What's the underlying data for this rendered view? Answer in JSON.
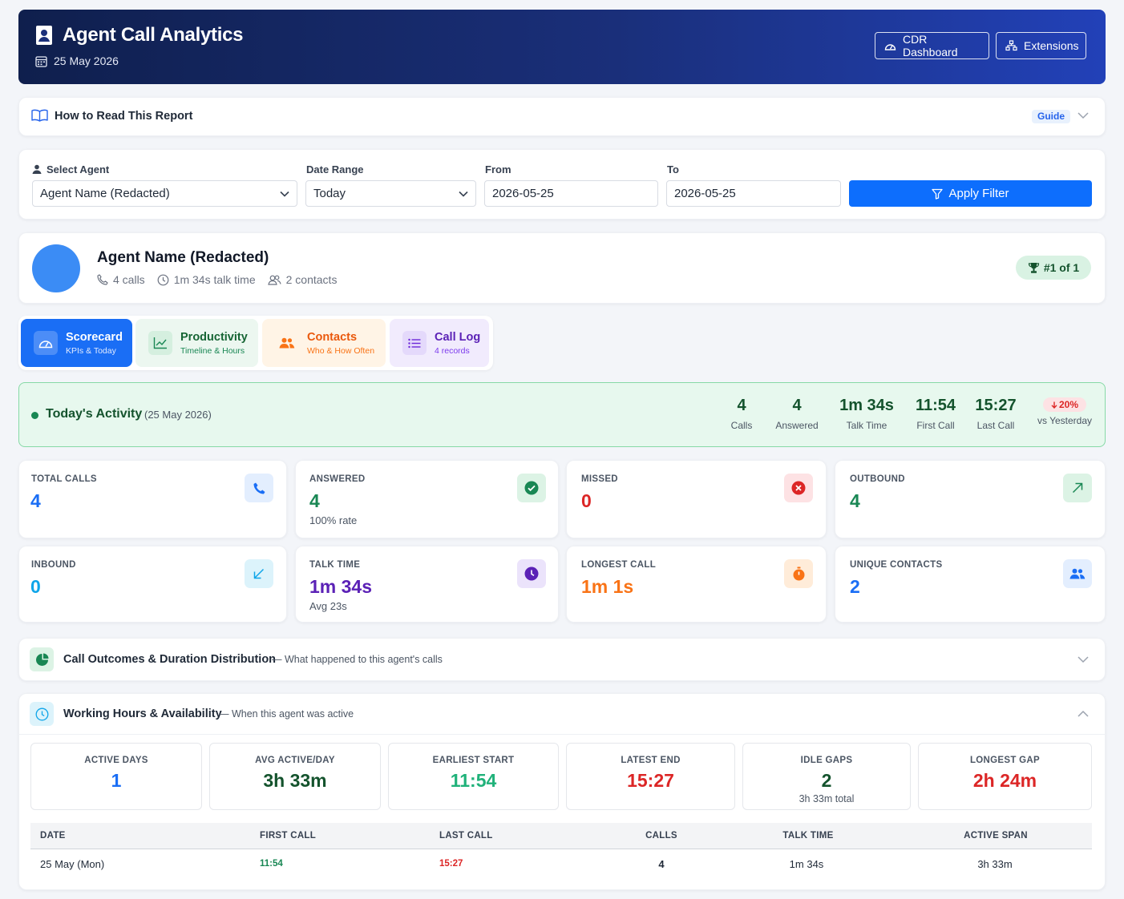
{
  "header": {
    "title": "Agent Call Analytics",
    "date": "25 May 2026",
    "buttons": {
      "cdr": "CDR Dashboard",
      "extensions": "Extensions"
    }
  },
  "guide": {
    "title": "How to Read This Report",
    "badge": "Guide"
  },
  "filters": {
    "agent_label": "Select Agent",
    "agent_value": "Agent Name (Redacted)",
    "range_label": "Date Range",
    "range_value": "Today",
    "from_label": "From",
    "from_value": "2026-05-25",
    "to_label": "To",
    "to_value": "2026-05-25",
    "apply": "Apply Filter"
  },
  "agent": {
    "name": "Agent Name (Redacted)",
    "calls": "4 calls",
    "talk": "1m 34s talk time",
    "contacts": "2 contacts",
    "rank": "#1 of 1"
  },
  "tabs": [
    {
      "title": "Scorecard",
      "sub": "KPIs & Today",
      "icon": "gauge-icon"
    },
    {
      "title": "Productivity",
      "sub": "Timeline & Hours",
      "icon": "line-chart-icon"
    },
    {
      "title": "Contacts",
      "sub": "Who & How Often",
      "icon": "people-icon"
    },
    {
      "title": "Call Log",
      "sub": "4 records",
      "icon": "list-icon"
    }
  ],
  "today": {
    "title": "Today's Activity",
    "date": "(25 May 2026)",
    "stats": [
      {
        "value": "4",
        "label": "Calls"
      },
      {
        "value": "4",
        "label": "Answered"
      },
      {
        "value": "1m 34s",
        "label": "Talk Time"
      },
      {
        "value": "11:54",
        "label": "First Call"
      },
      {
        "value": "15:27",
        "label": "Last Call"
      }
    ],
    "change": "20%",
    "change_label": "vs Yesterday"
  },
  "kpis": [
    {
      "label": "TOTAL CALLS",
      "value": "4",
      "sub": "",
      "color": "#1a6ef5",
      "icon": "phone-icon"
    },
    {
      "label": "ANSWERED",
      "value": "4",
      "sub": "100% rate",
      "color": "#198754",
      "icon": "check-circle-icon"
    },
    {
      "label": "MISSED",
      "value": "0",
      "sub": "",
      "color": "#dc2626",
      "icon": "x-circle-icon"
    },
    {
      "label": "OUTBOUND",
      "value": "4",
      "sub": "",
      "color": "#198754",
      "icon": "arrow-up-right-icon"
    },
    {
      "label": "INBOUND",
      "value": "0",
      "sub": "",
      "color": "#0ea5e9",
      "icon": "arrow-down-left-icon"
    },
    {
      "label": "TALK TIME",
      "value": "1m 34s",
      "sub": "Avg 23s",
      "color": "#5b21b6",
      "icon": "clock-icon"
    },
    {
      "label": "LONGEST CALL",
      "value": "1m 1s",
      "sub": "",
      "color": "#f97316",
      "icon": "stopwatch-icon"
    },
    {
      "label": "UNIQUE CONTACTS",
      "value": "2",
      "sub": "",
      "color": "#1a6ef5",
      "icon": "people-icon"
    }
  ],
  "outcomes": {
    "title": "Call Outcomes & Duration Distribution",
    "sub": "— What happened to this agent's calls"
  },
  "working": {
    "title": "Working Hours & Availability",
    "sub": "— When this agent was active",
    "cards": [
      {
        "label": "ACTIVE DAYS",
        "value": "1",
        "sub": "",
        "color": "#1a6ef5"
      },
      {
        "label": "AVG ACTIVE/DAY",
        "value": "3h 33m",
        "sub": "",
        "color": "#14532d"
      },
      {
        "label": "EARLIEST START",
        "value": "11:54",
        "sub": "",
        "color": "#20b27a"
      },
      {
        "label": "LATEST END",
        "value": "15:27",
        "sub": "",
        "color": "#dc2626"
      },
      {
        "label": "IDLE GAPS",
        "value": "2",
        "sub": "3h 33m total",
        "color": "#14532d"
      },
      {
        "label": "LONGEST GAP",
        "value": "2h 24m",
        "sub": "",
        "color": "#dc2626"
      }
    ],
    "table": {
      "headers": [
        "DATE",
        "FIRST CALL",
        "LAST CALL",
        "CALLS",
        "TALK TIME",
        "ACTIVE SPAN"
      ],
      "rows": [
        [
          "25 May (Mon)",
          "11:54",
          "15:27",
          "4",
          "1m 34s",
          "3h 33m"
        ]
      ]
    }
  }
}
